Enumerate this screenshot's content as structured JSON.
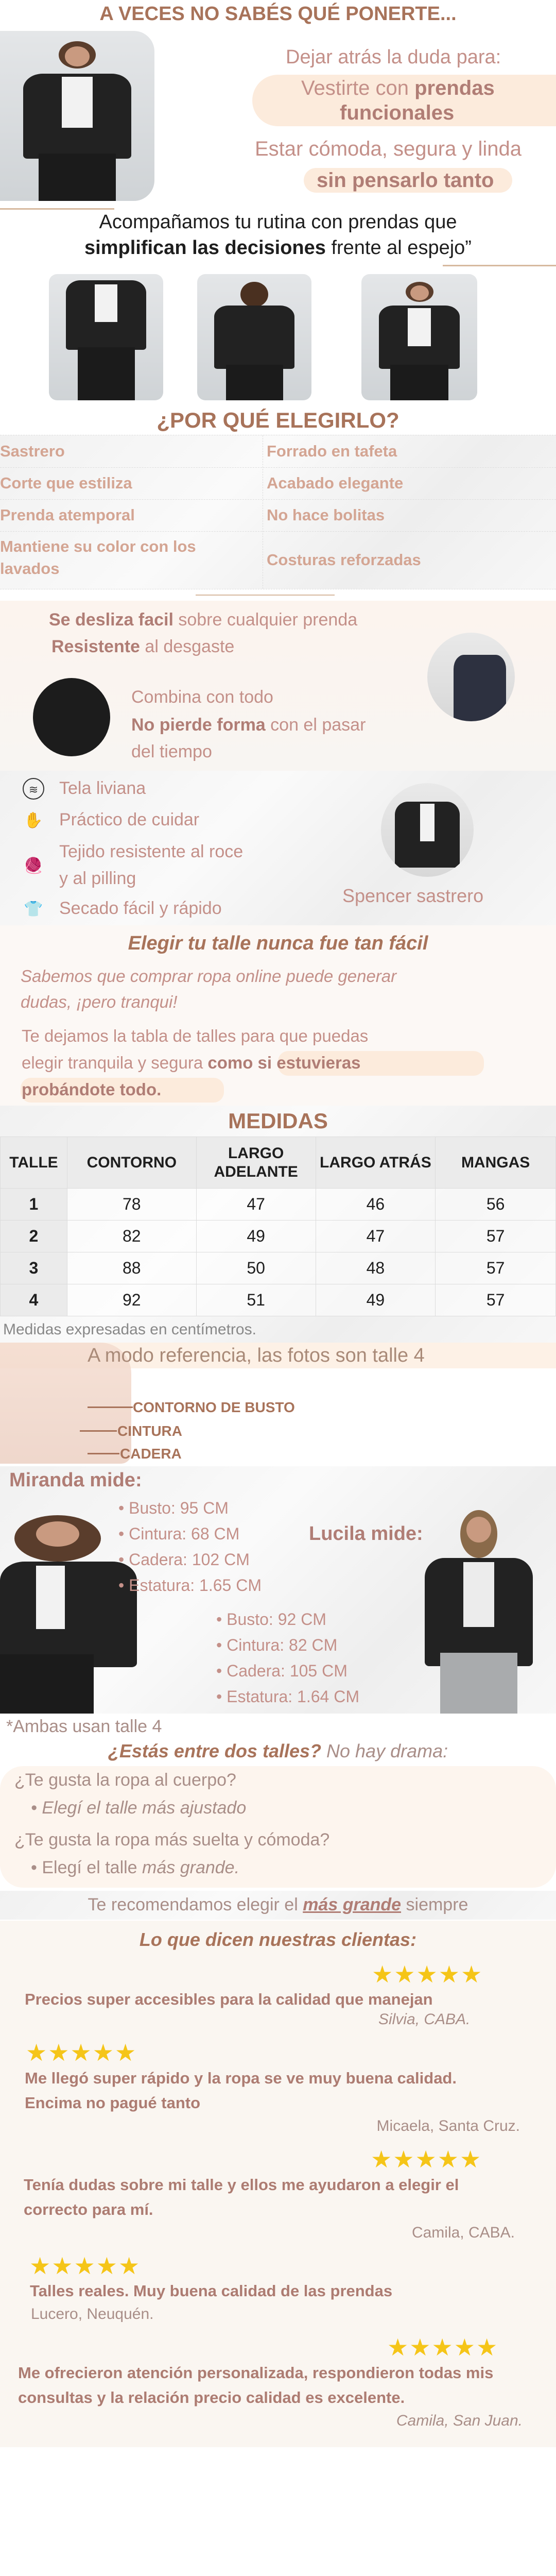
{
  "hero": {
    "title": "A VECES NO SABÉS QUÉ PONERTE...",
    "lead": "Dejar atrás la duda para:",
    "pill1_a": "Vestirte con ",
    "pill1_b": "prendas",
    "pill1_c": "funcionales",
    "line2": "Estar cómoda, segura y linda",
    "pill2": "sin pensarlo tanto"
  },
  "quote": {
    "line1": "Acompañamos tu rutina con prendas que",
    "bold": "simplifican las decisiones",
    "rest": " frente al espejo”"
  },
  "why": {
    "title": "¿POR QUÉ ELEGIRLO?",
    "rows": [
      [
        "Sastrero",
        "Forrado en tafeta"
      ],
      [
        "Corte que estiliza",
        "Acabado elegante"
      ],
      [
        "Prenda atemporal",
        "No hace bolitas"
      ],
      [
        "Mantiene su color con los lavados",
        "Costuras reforzadas"
      ]
    ]
  },
  "benefits": {
    "b1_bold": "Se desliza facil",
    "b1_rest": " sobre cualquier prenda",
    "b2_bold": "Resistente",
    "b2_rest": " al desgaste",
    "b3": "Combina con todo",
    "b4_bold": "No pierde forma",
    "b4_rest": " con el pasar",
    "b4_line2": "del tiempo"
  },
  "care": {
    "items": [
      {
        "icon": "fabric-icon",
        "label": "Tela liviana"
      },
      {
        "icon": "hand-care-icon",
        "label": "Práctico de cuidar"
      },
      {
        "icon": "yarn-ball-icon",
        "label": "Tejido resistente al roce",
        "label2": "y al pilling"
      },
      {
        "icon": "drying-shirt-icon",
        "label": "Secado fácil y rápido"
      }
    ],
    "product": "Spencer sastrero"
  },
  "size_intro": {
    "title": "Elegir tu talle nunca fue tan fácil",
    "p1a": "Sabemos que comprar ropa online puede generar",
    "p1b": "dudas, ¡pero tranqui!",
    "p2a": "Te dejamos la tabla de talles para que puedas",
    "p2b": "elegir tranquila y segura ",
    "p2c": "como si estuvieras",
    "p2d": "probándote todo."
  },
  "measures": {
    "title": "MEDIDAS",
    "headers": [
      "TALLE",
      "CONTORNO",
      "LARGO ADELANTE",
      "LARGO ATRÁS",
      "MANGAS"
    ],
    "rows": [
      [
        "1",
        "78",
        "47",
        "46",
        "56"
      ],
      [
        "2",
        "82",
        "49",
        "47",
        "57"
      ],
      [
        "3",
        "88",
        "50",
        "48",
        "57"
      ],
      [
        "4",
        "92",
        "51",
        "49",
        "57"
      ]
    ],
    "note": "Medidas expresadas en centímetros."
  },
  "reference": {
    "banner": "A modo referencia, las fotos son talle 4",
    "labels": [
      "CONTORNO DE BUSTO",
      "CINTURA",
      "CADERA"
    ]
  },
  "models": {
    "m1_title": "Miranda mide:",
    "m1": [
      "Busto: 95 CM",
      "Cintura: 68 CM",
      "Cadera: 102 CM",
      "Estatura: 1.65 CM"
    ],
    "m2_title": "Lucila mide:",
    "m2": [
      "Busto: 92 CM",
      "Cintura: 82 CM",
      "Cadera: 105 CM",
      "Estatura: 1.64 CM"
    ],
    "note": "*Ambas usan talle 4"
  },
  "between": {
    "title_bold": "¿Estás entre dos talles?",
    "title_rest": " No hay drama:",
    "q1": "¿Te gusta la ropa al cuerpo?",
    "a1": "Elegí el talle más ajustado",
    "q2": "¿Te gusta la ropa más suelta y cómoda?",
    "a2a": "Elegí el talle ",
    "a2b": "más grande."
  },
  "recommend": {
    "a": "Te recomendamos elegir el ",
    "b": "más grande",
    "c": " siempre"
  },
  "testimonials": {
    "title": "Lo que dicen nuestras clientas:",
    "stars": "★★★★★",
    "rating": 5,
    "items": [
      {
        "text": "Precios super accesibles para la calidad que manejan",
        "author": "Silvia, CABA."
      },
      {
        "text": "Me llegó super rápido y la ropa se ve muy buena calidad. Encima no pagué tanto",
        "author": "Micaela, Santa Cruz."
      },
      {
        "text": "Tenía dudas sobre mi talle y ellos me ayudaron a elegir el correcto para mí.",
        "author": "Camila, CABA."
      },
      {
        "text": "Talles reales. Muy buena calidad de las prendas",
        "author": "Lucero, Neuquén."
      },
      {
        "text": "Me ofrecieron atención personalizada, respondieron todas mis consultas y la relación precio calidad es excelente.",
        "author": "Camila, San Juan."
      }
    ]
  },
  "colors": {
    "title": "#a8735a",
    "text": "#c49089",
    "bold": "#b07d75",
    "pill": "#fcebdc",
    "star": "#f5c518"
  }
}
